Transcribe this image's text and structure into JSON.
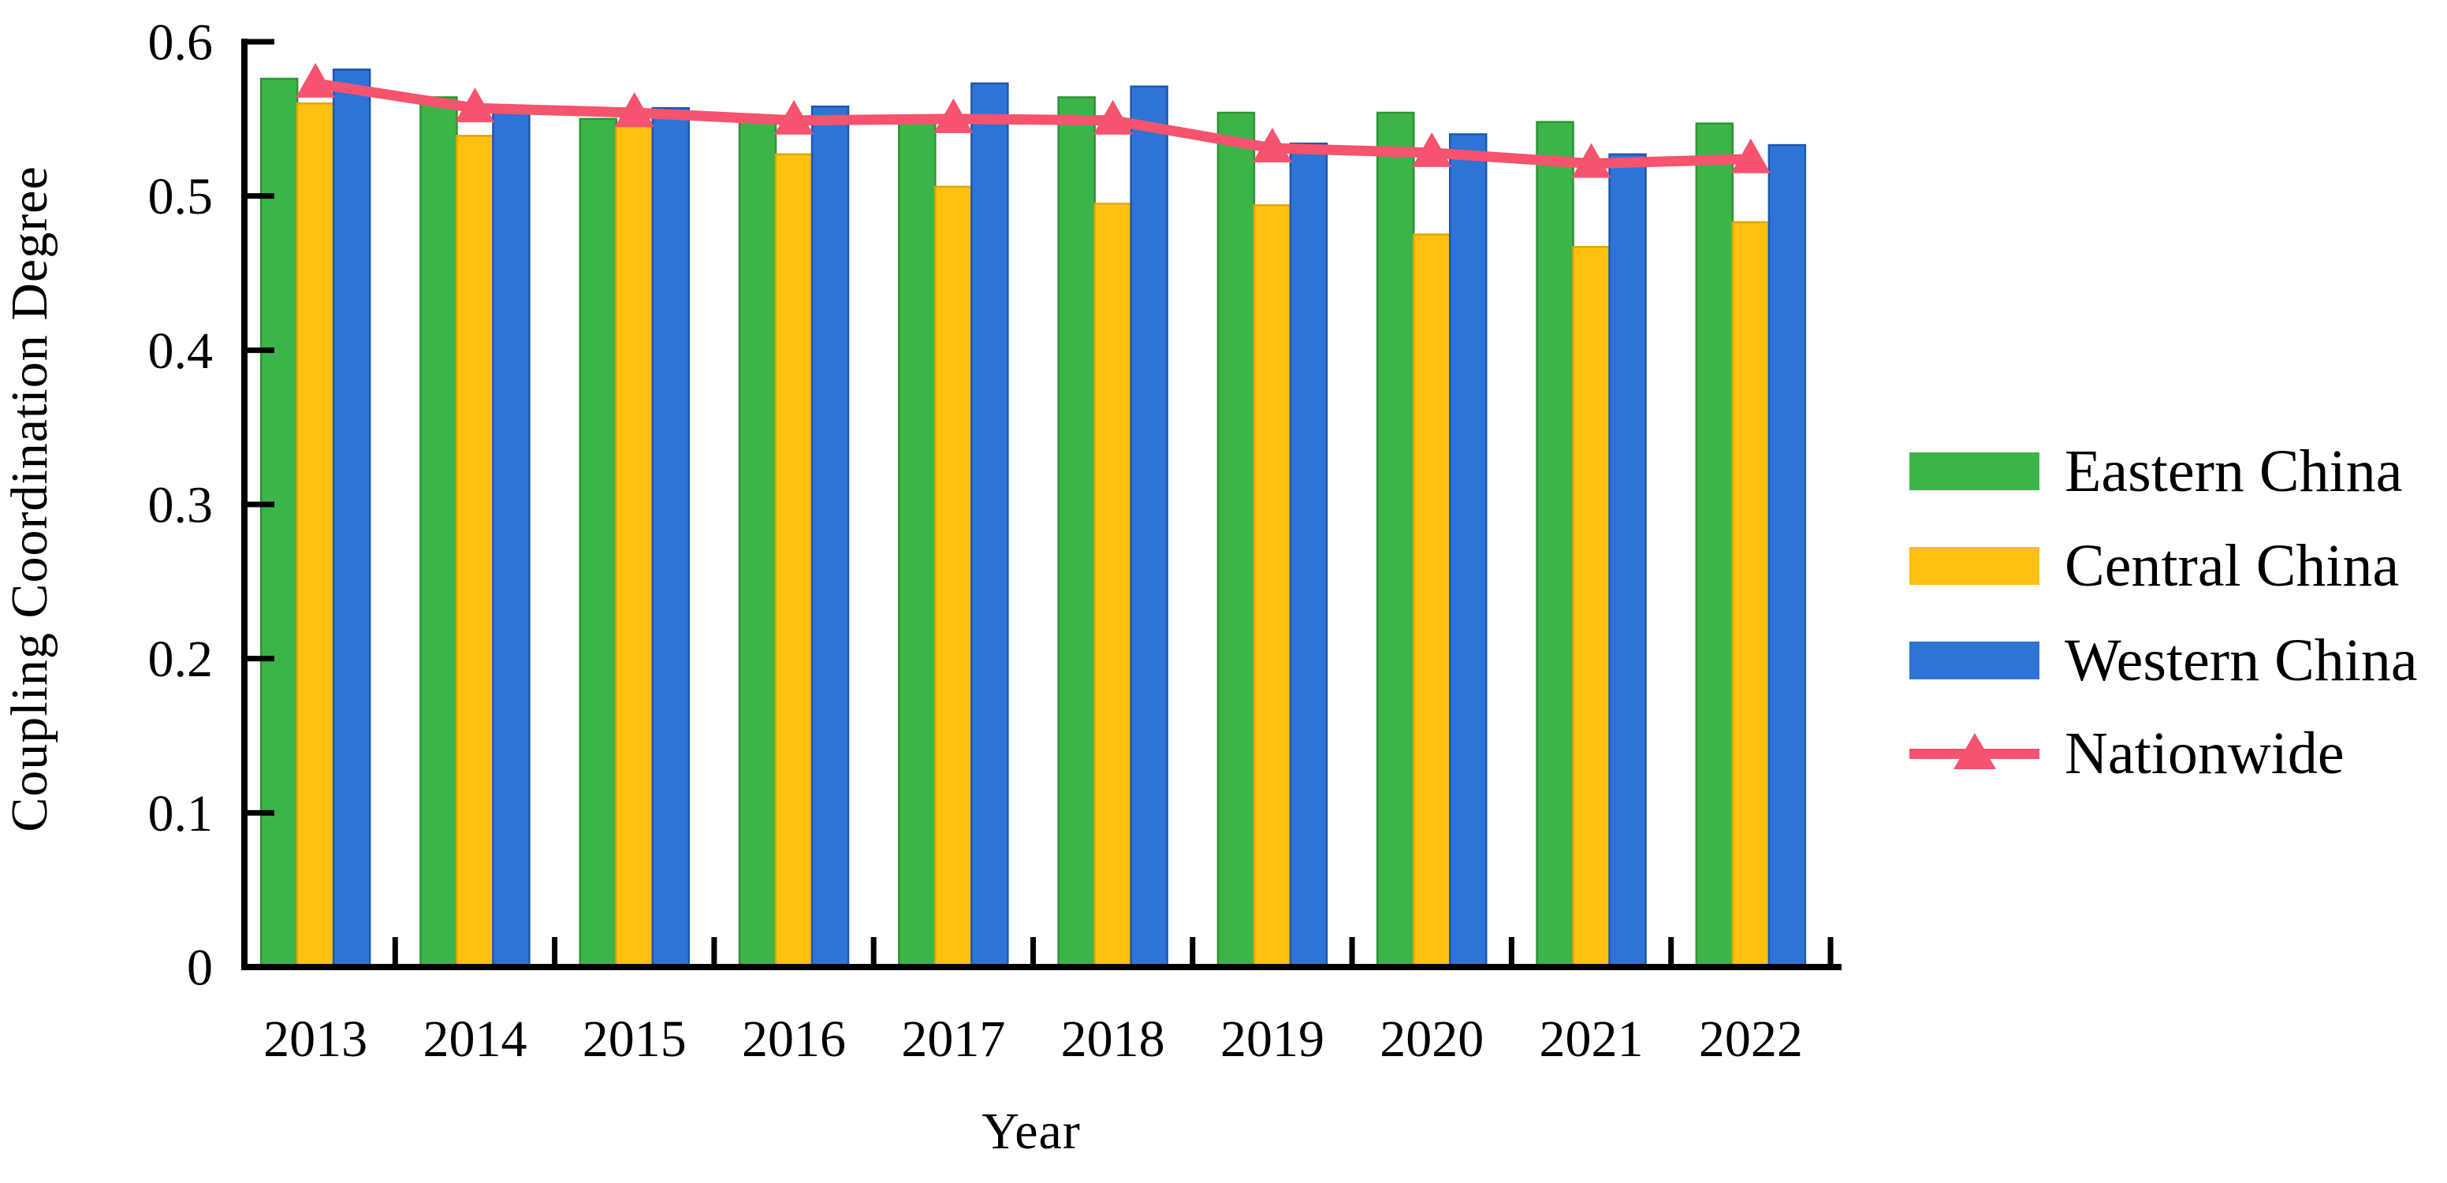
{
  "figure": {
    "ylabel": "Coupling Coordination Degree",
    "xlabel": "Year"
  },
  "legend": {
    "position": "right",
    "items": [
      {
        "label": "Eastern China",
        "type": "bar",
        "color": "#3cb44a"
      },
      {
        "label": "Central China",
        "type": "bar",
        "color": "#ffc010"
      },
      {
        "label": "Western China",
        "type": "bar",
        "color": "#2e73d6"
      },
      {
        "label": "Nationwide",
        "type": "line",
        "color": "#f5536e"
      }
    ]
  },
  "chart_data": {
    "type": "bar",
    "title": "",
    "xlabel": "Year",
    "ylabel": "Coupling Coordination Degree",
    "categories": [
      "2013",
      "2014",
      "2015",
      "2016",
      "2017",
      "2018",
      "2019",
      "2020",
      "2021",
      "2022"
    ],
    "series": [
      {
        "name": "Eastern China",
        "color": "#3cb44a",
        "edge_color": "#2b9433",
        "values": [
          0.576,
          0.564,
          0.55,
          0.552,
          0.552,
          0.564,
          0.554,
          0.554,
          0.548,
          0.547
        ]
      },
      {
        "name": "Central China",
        "color": "#ffc010",
        "edge_color": "#e2a700",
        "values": [
          0.56,
          0.539,
          0.545,
          0.527,
          0.506,
          0.495,
          0.494,
          0.475,
          0.467,
          0.483
        ]
      },
      {
        "name": "Western China",
        "color": "#2e73d6",
        "edge_color": "#1d57ae",
        "values": [
          0.582,
          0.558,
          0.557,
          0.558,
          0.573,
          0.571,
          0.534,
          0.54,
          0.527,
          0.533
        ]
      }
    ],
    "line_series": [
      {
        "name": "Nationwide",
        "color": "#f5536e",
        "marker": "triangle-up",
        "values": [
          0.573,
          0.557,
          0.554,
          0.549,
          0.55,
          0.549,
          0.531,
          0.528,
          0.521,
          0.524
        ]
      }
    ],
    "ylim": [
      0,
      0.6
    ],
    "y_ticks": [
      0,
      0.1,
      0.2,
      0.3,
      0.4,
      0.5,
      0.6
    ],
    "y_tick_labels": [
      "0",
      "0.1",
      "0.2",
      "0.3",
      "0.4",
      "0.5",
      "0.6"
    ],
    "grid": false,
    "legend_position": "right"
  }
}
